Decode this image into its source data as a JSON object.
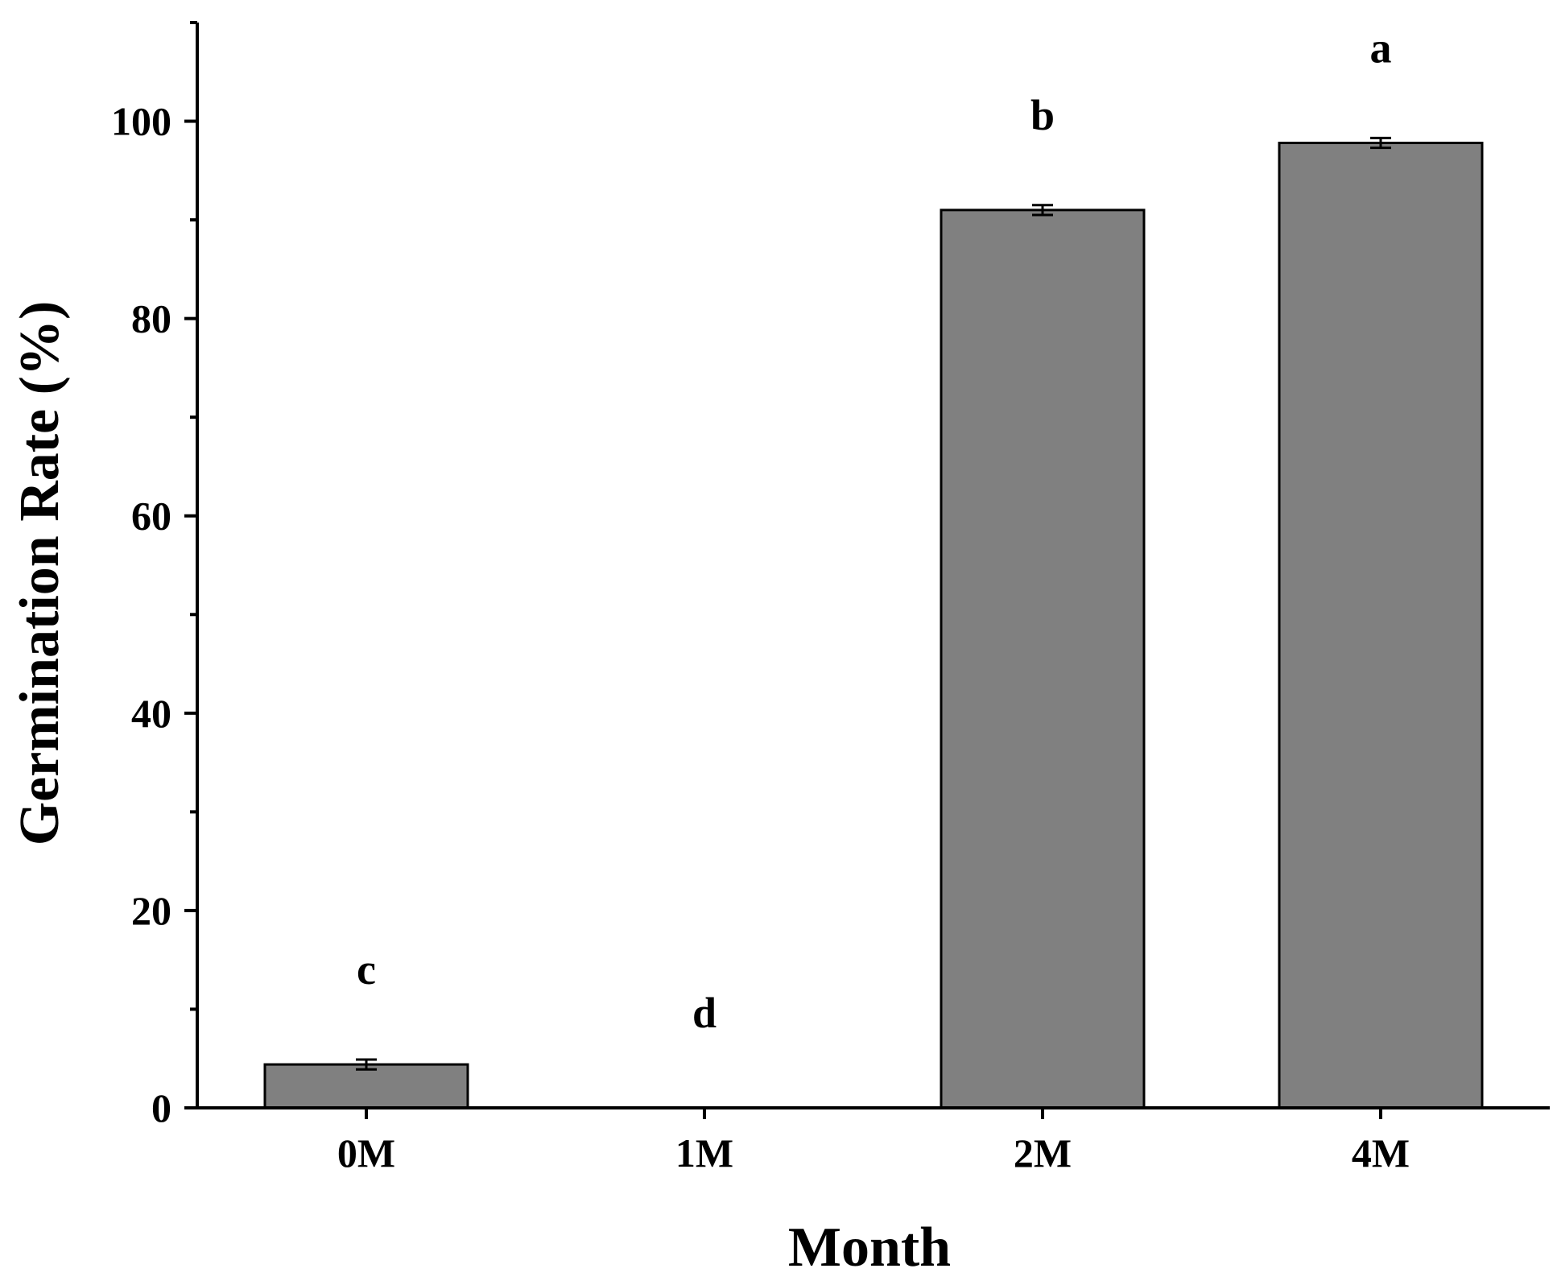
{
  "chart_data": {
    "type": "bar",
    "title": "",
    "xlabel": "Month",
    "ylabel": "Germination Rate (%)",
    "categories": [
      "0M",
      "1M",
      "2M",
      "4M"
    ],
    "values": [
      4.4,
      0,
      91.0,
      97.8
    ],
    "errors": [
      0.5,
      0,
      0.5,
      0.5
    ],
    "significance_letters": [
      "c",
      "d",
      "b",
      "a"
    ],
    "ylim": [
      0,
      110
    ],
    "yticks": [
      0,
      20,
      40,
      60,
      80,
      100
    ],
    "yticks_minor": [
      10,
      30,
      50,
      70,
      90
    ],
    "grid": false,
    "legend": "none",
    "colors": {
      "bar_fill": "#808080",
      "bar_stroke": "#000000",
      "axis": "#000000"
    }
  }
}
